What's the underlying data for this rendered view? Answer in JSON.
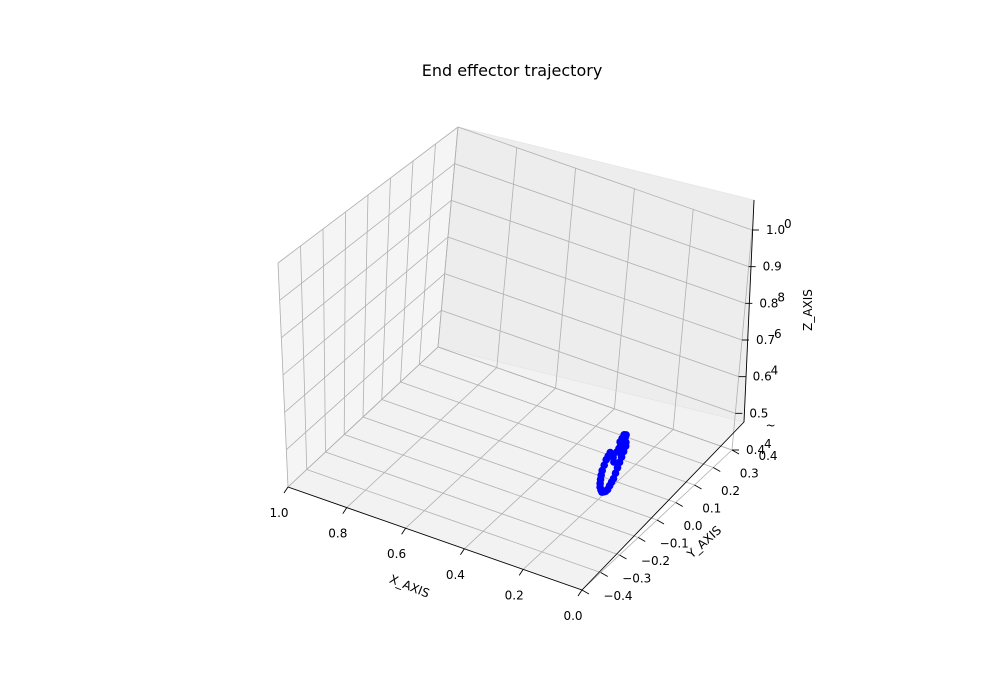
{
  "chart_data": {
    "type": "scatter",
    "projection": "3d",
    "title": "End effector trajectory",
    "xlabel": "X_AXIS",
    "ylabel": "Y_AXIS",
    "zlabel": "Z_AXIS",
    "xlim": [
      0.0,
      1.0
    ],
    "ylim": [
      -0.4,
      0.4
    ],
    "zlim": [
      0.4,
      1.0
    ],
    "xticks": [
      "1.0",
      "0.8",
      "0.6",
      "0.4",
      "0.2",
      "0.0"
    ],
    "yticks": [
      "−0.4",
      "−0.3",
      "−0.2",
      "−0.1",
      "0.0",
      "0.1",
      "0.2",
      "0.3",
      "0.4"
    ],
    "zticks": [
      "0.4",
      "0.5",
      "0.6",
      "0.7",
      "0.8",
      "0.9",
      "1.0"
    ],
    "zticks_overlap": [
      "4",
      "~",
      "4",
      "6",
      "8",
      "0"
    ],
    "grid": true,
    "series": [
      {
        "color": "#0000ff",
        "marker": "circle",
        "points": [
          [
            0.15,
            0.05,
            0.55
          ],
          [
            0.15,
            0.06,
            0.54
          ],
          [
            0.15,
            0.06,
            0.53
          ],
          [
            0.15,
            0.05,
            0.52
          ],
          [
            0.15,
            0.04,
            0.51
          ],
          [
            0.15,
            0.03,
            0.5
          ],
          [
            0.15,
            0.02,
            0.49
          ],
          [
            0.15,
            0.01,
            0.48
          ],
          [
            0.15,
            0.0,
            0.47
          ],
          [
            0.15,
            -0.01,
            0.465
          ],
          [
            0.15,
            -0.02,
            0.46
          ],
          [
            0.15,
            -0.03,
            0.455
          ],
          [
            0.15,
            -0.04,
            0.455
          ],
          [
            0.15,
            -0.05,
            0.458
          ],
          [
            0.15,
            -0.06,
            0.462
          ],
          [
            0.15,
            -0.065,
            0.47
          ],
          [
            0.15,
            -0.07,
            0.48
          ],
          [
            0.15,
            -0.07,
            0.49
          ],
          [
            0.15,
            -0.068,
            0.5
          ],
          [
            0.15,
            -0.065,
            0.51
          ],
          [
            0.15,
            -0.06,
            0.52
          ],
          [
            0.15,
            -0.05,
            0.53
          ],
          [
            0.15,
            -0.04,
            0.54
          ],
          [
            0.15,
            -0.03,
            0.545
          ],
          [
            0.15,
            -0.02,
            0.55
          ],
          [
            0.15,
            0.03,
            0.555
          ],
          [
            0.15,
            0.04,
            0.56
          ],
          [
            0.15,
            0.05,
            0.565
          ],
          [
            0.15,
            0.06,
            0.56
          ],
          [
            0.15,
            0.055,
            0.555
          ],
          [
            0.15,
            0.045,
            0.55
          ],
          [
            0.15,
            0.035,
            0.545
          ],
          [
            0.15,
            0.025,
            0.54
          ],
          [
            0.15,
            0.015,
            0.535
          ],
          [
            0.15,
            -0.005,
            0.53
          ],
          [
            0.15,
            0.0,
            0.515
          ]
        ]
      }
    ]
  }
}
